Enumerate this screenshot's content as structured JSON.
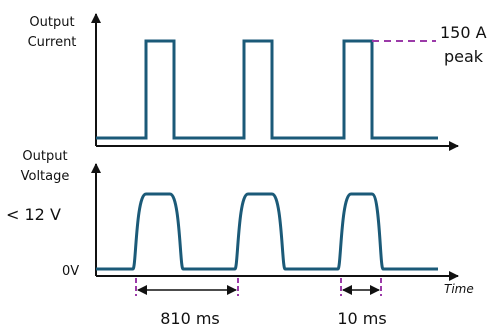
{
  "current_panel": {
    "ylabel_line1": "Output",
    "ylabel_line2": "Current",
    "peak_value": "150 A",
    "peak_word": "peak"
  },
  "voltage_panel": {
    "ylabel_line1": "Output",
    "ylabel_line2": "Voltage",
    "high_level_label": "< 12 V",
    "zero_label": "0V",
    "x_axis_label": "Time"
  },
  "dimensions": {
    "period_label": "810 ms",
    "pulse_width_label": "10 ms"
  },
  "colors": {
    "waveform": "#1b5a78",
    "axis": "#111111",
    "peak_dash": "#9b3aa8",
    "dimension_tick": "#9b3aa8"
  }
}
